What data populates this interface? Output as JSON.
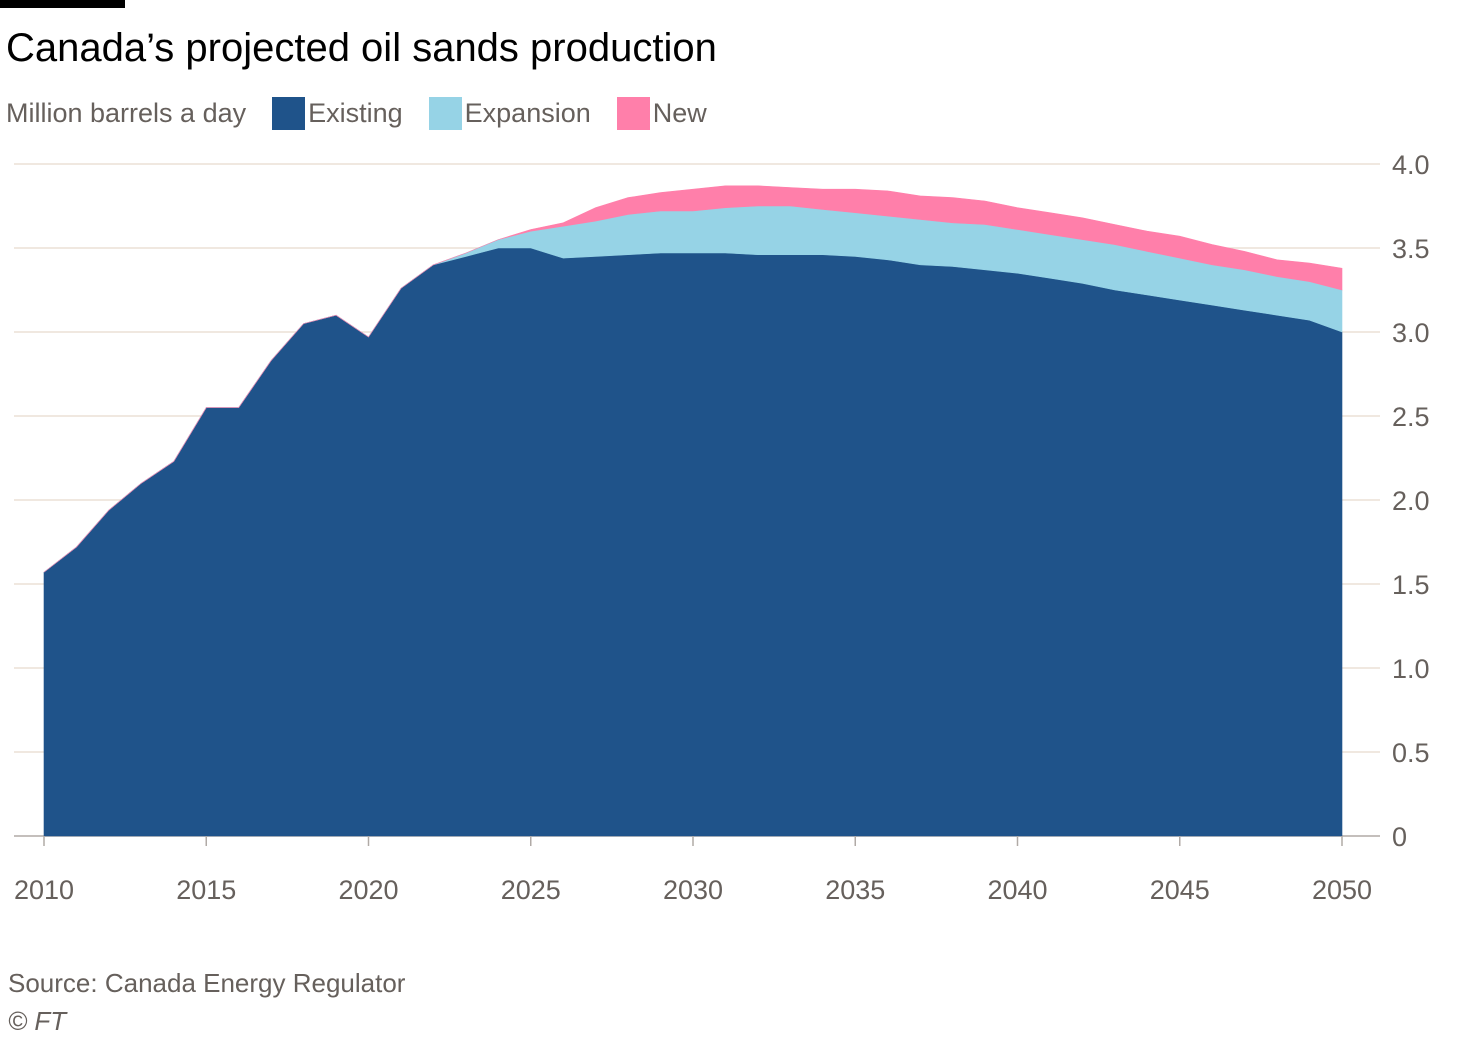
{
  "header": {
    "title": "Canada’s projected oil sands production",
    "unit_label": "Million barrels a day"
  },
  "legend": [
    {
      "label": "Existing",
      "color": "#1f538a"
    },
    {
      "label": "Expansion",
      "color": "#96d3e6"
    },
    {
      "label": "New",
      "color": "#ff7faa"
    }
  ],
  "footer": {
    "source": "Source: Canada Energy Regulator",
    "copyright": "© FT"
  },
  "chart_data": {
    "type": "area",
    "stacked": true,
    "title": "Canada’s projected oil sands production",
    "ylabel": "Million barrels a day",
    "xlim": [
      2010,
      2050
    ],
    "ylim": [
      0,
      4
    ],
    "y_axis_position": "right",
    "grid": "horizontal",
    "x_ticks": [
      "2010",
      "2015",
      "2020",
      "2025",
      "2030",
      "2035",
      "2040",
      "2045",
      "2050"
    ],
    "y_ticks": [
      "0",
      "0.5",
      "1.0",
      "1.5",
      "2.0",
      "2.5",
      "3.0",
      "3.5",
      "4.0"
    ],
    "x": [
      2010,
      2011,
      2012,
      2013,
      2014,
      2015,
      2016,
      2017,
      2018,
      2019,
      2020,
      2021,
      2022,
      2023,
      2024,
      2025,
      2026,
      2027,
      2028,
      2029,
      2030,
      2031,
      2032,
      2033,
      2034,
      2035,
      2036,
      2037,
      2038,
      2039,
      2040,
      2041,
      2042,
      2043,
      2044,
      2045,
      2046,
      2047,
      2048,
      2049,
      2050
    ],
    "series": [
      {
        "name": "Existing",
        "values": [
          1.57,
          1.72,
          1.94,
          2.1,
          2.23,
          2.55,
          2.55,
          2.83,
          3.05,
          3.1,
          2.97,
          3.26,
          3.4,
          3.45,
          3.5,
          3.5,
          3.44,
          3.45,
          3.46,
          3.47,
          3.47,
          3.47,
          3.46,
          3.46,
          3.46,
          3.45,
          3.43,
          3.4,
          3.39,
          3.37,
          3.35,
          3.32,
          3.29,
          3.25,
          3.22,
          3.19,
          3.16,
          3.13,
          3.1,
          3.07,
          3.0
        ]
      },
      {
        "name": "Expansion",
        "values": [
          0,
          0,
          0,
          0,
          0,
          0,
          0,
          0,
          0,
          0,
          0,
          0,
          0,
          0.02,
          0.05,
          0.1,
          0.19,
          0.21,
          0.24,
          0.25,
          0.25,
          0.27,
          0.29,
          0.29,
          0.27,
          0.26,
          0.26,
          0.27,
          0.26,
          0.27,
          0.26,
          0.26,
          0.26,
          0.27,
          0.26,
          0.25,
          0.24,
          0.24,
          0.23,
          0.23,
          0.25
        ]
      },
      {
        "name": "New",
        "values": [
          0,
          0,
          0,
          0,
          0,
          0,
          0,
          0,
          0,
          0,
          0,
          0,
          0,
          0,
          0,
          0.01,
          0.02,
          0.08,
          0.1,
          0.11,
          0.13,
          0.13,
          0.12,
          0.11,
          0.12,
          0.14,
          0.15,
          0.14,
          0.15,
          0.14,
          0.13,
          0.13,
          0.13,
          0.12,
          0.12,
          0.13,
          0.12,
          0.11,
          0.1,
          0.11,
          0.13
        ]
      }
    ]
  }
}
